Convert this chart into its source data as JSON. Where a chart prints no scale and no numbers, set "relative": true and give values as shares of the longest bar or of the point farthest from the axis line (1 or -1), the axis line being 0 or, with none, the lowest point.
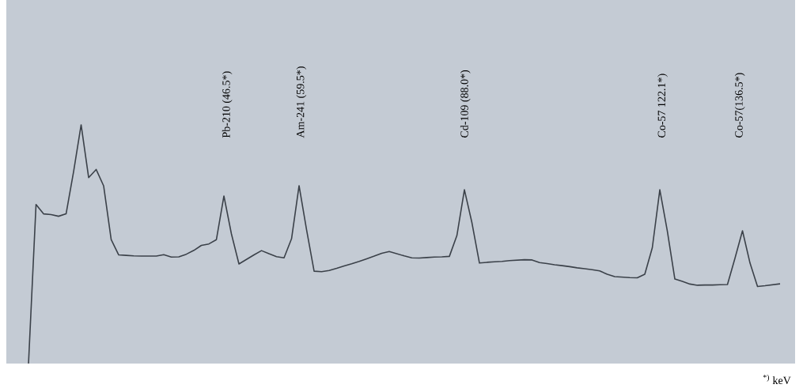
{
  "chart_data": {
    "type": "line",
    "relative": true,
    "marker": "none",
    "categories": [
      null,
      null,
      null,
      null,
      null,
      null,
      null,
      null,
      null,
      null,
      null,
      null,
      null,
      null,
      null,
      null,
      null,
      null,
      null,
      null,
      null,
      null,
      null,
      null,
      null,
      null,
      null,
      null,
      null,
      null,
      null,
      null,
      null,
      null,
      null,
      null,
      null,
      null,
      null,
      null,
      null,
      null,
      null,
      null,
      null,
      null,
      null,
      null,
      null,
      null,
      null,
      null,
      null,
      null,
      null,
      null,
      null,
      null,
      null,
      null,
      null,
      null,
      null,
      null,
      null,
      null,
      null,
      null,
      null,
      null,
      null,
      null,
      null,
      null,
      null,
      null,
      null,
      null,
      null,
      null,
      null,
      null,
      null,
      null,
      null,
      null,
      null,
      null,
      null,
      null,
      null,
      null,
      null,
      null,
      null,
      null,
      null,
      null,
      null,
      null,
      null
    ],
    "series": [
      {
        "color": "#3b4149",
        "values": [
          0,
          0.666,
          0.627,
          0.624,
          0.617,
          0.627,
          0.804,
          1.0,
          0.779,
          0.813,
          0.744,
          0.519,
          0.455,
          0.453,
          0.451,
          0.45,
          0.45,
          0.45,
          0.456,
          0.446,
          0.447,
          0.458,
          0.474,
          0.495,
          0.501,
          0.519,
          0.702,
          0.543,
          0.417,
          0.436,
          0.455,
          0.473,
          0.46,
          0.448,
          0.443,
          0.523,
          0.745,
          0.56,
          0.387,
          0.385,
          0.39,
          0.399,
          0.409,
          0.418,
          0.428,
          0.439,
          0.45,
          0.462,
          0.469,
          0.46,
          0.451,
          0.443,
          0.442,
          0.444,
          0.446,
          0.447,
          0.449,
          0.536,
          0.728,
          0.59,
          0.421,
          0.424,
          0.426,
          0.428,
          0.431,
          0.433,
          0.435,
          0.434,
          0.423,
          0.419,
          0.414,
          0.41,
          0.406,
          0.401,
          0.397,
          0.393,
          0.388,
          0.374,
          0.364,
          0.362,
          0.36,
          0.359,
          0.374,
          0.485,
          0.728,
          0.555,
          0.354,
          0.344,
          0.333,
          0.328,
          0.329,
          0.329,
          0.33,
          0.331,
          0.441,
          0.556,
          0.421,
          0.323,
          0.326,
          0.33,
          0.334
        ]
      }
    ],
    "annotations": [
      "Pb-210 (46.5*)",
      "Am-241 (59.5*)",
      "Cd-109 (88.0*)",
      "Co-57 122.1*)",
      "Co-57(136.5*)",
      "$^{*)}$ keV"
    ]
  }
}
